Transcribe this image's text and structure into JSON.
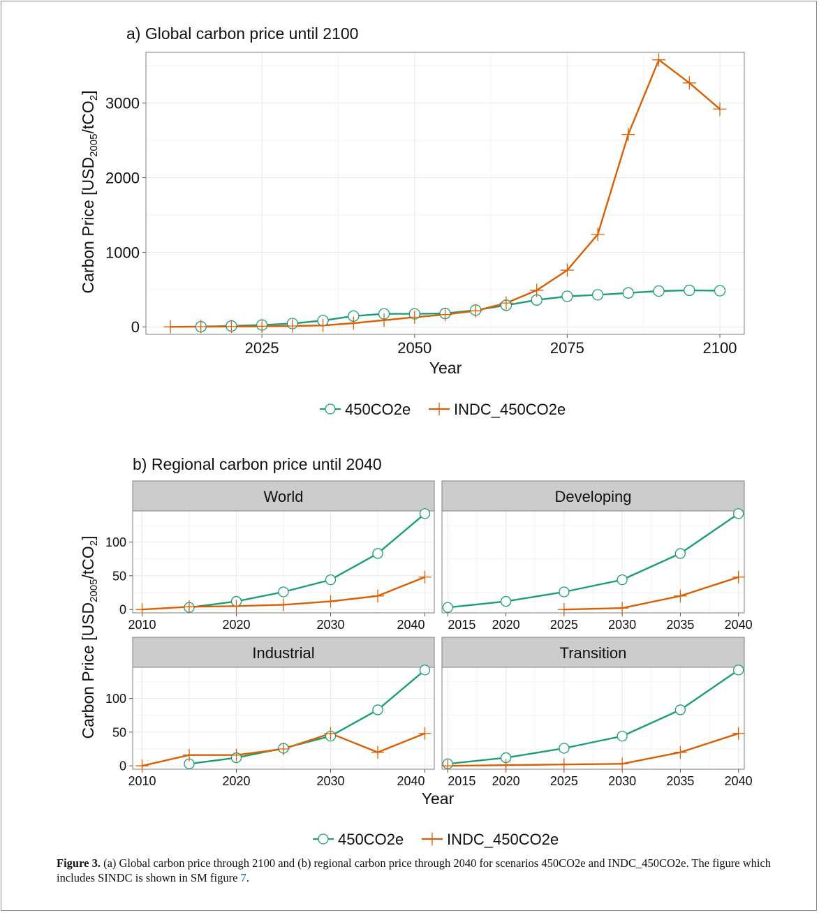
{
  "colors": {
    "series1": "#1b9e77",
    "series2": "#d95f02",
    "strip_bg": "#cccccc",
    "grid": "#ebebeb",
    "frame": "#7f7f7f"
  },
  "chart_data": [
    {
      "type": "line",
      "title": "a) Global carbon price until 2100",
      "xlabel": "Year",
      "ylabel": "Carbon Price [USD2005/tCO2]",
      "ylabel_parts": {
        "main": "Carbon Price [USD",
        "sub1": "2005",
        "mid": "/tCO",
        "sub2": "2",
        "end": "]"
      },
      "xlim": [
        2006,
        2104
      ],
      "ylim": [
        -100,
        3680
      ],
      "xticks": [
        2025,
        2050,
        2075,
        2100
      ],
      "yticks": [
        0,
        1000,
        2000,
        3000
      ],
      "grid": true,
      "legend_position": "bottom",
      "series": [
        {
          "name": "450CO2e",
          "marker": "circle",
          "x": [
            2015,
            2020,
            2025,
            2030,
            2035,
            2040,
            2045,
            2050,
            2055,
            2060,
            2065,
            2070,
            2075,
            2080,
            2085,
            2090,
            2095,
            2100
          ],
          "y": [
            3,
            12,
            25,
            45,
            85,
            145,
            175,
            175,
            180,
            225,
            290,
            360,
            410,
            430,
            455,
            480,
            490,
            485
          ]
        },
        {
          "name": "INDC_450CO2e",
          "marker": "plus",
          "x": [
            2010,
            2015,
            2020,
            2025,
            2030,
            2035,
            2040,
            2045,
            2050,
            2055,
            2060,
            2065,
            2070,
            2075,
            2080,
            2085,
            2090,
            2095,
            2100
          ],
          "y": [
            0,
            3,
            5,
            8,
            12,
            20,
            50,
            90,
            130,
            165,
            215,
            320,
            490,
            760,
            1240,
            2580,
            3580,
            3270,
            2920
          ]
        }
      ]
    },
    {
      "type": "line",
      "title": "b) Regional carbon price until 2040",
      "xlabel": "Year",
      "ylabel": "Carbon Price [USD2005/tCO2]",
      "ylim": [
        -5,
        146
      ],
      "yticks": [
        0,
        50,
        100
      ],
      "grid": true,
      "legend_position": "bottom",
      "facets": [
        {
          "name": "World",
          "xlim": [
            2009,
            2041
          ],
          "xticks": [
            2010,
            2020,
            2030,
            2040
          ],
          "series": [
            {
              "name": "450CO2e",
              "x": [
                2015,
                2020,
                2025,
                2030,
                2035,
                2040
              ],
              "y": [
                3,
                12,
                26,
                44,
                83,
                142
              ]
            },
            {
              "name": "INDC_450CO2e",
              "x": [
                2010,
                2015,
                2020,
                2025,
                2030,
                2035,
                2040
              ],
              "y": [
                0,
                4,
                5,
                7,
                12,
                20,
                48
              ]
            }
          ]
        },
        {
          "name": "Developing",
          "xlim": [
            2014.5,
            2040.5
          ],
          "xticks": [
            2015,
            2020,
            2025,
            2030,
            2035,
            2040
          ],
          "series": [
            {
              "name": "450CO2e",
              "x": [
                2015,
                2020,
                2025,
                2030,
                2035,
                2040
              ],
              "y": [
                3,
                12,
                26,
                44,
                83,
                142
              ]
            },
            {
              "name": "INDC_450CO2e",
              "x": [
                2025,
                2030,
                2035,
                2040
              ],
              "y": [
                0,
                2,
                20,
                48
              ]
            }
          ]
        },
        {
          "name": "Industrial",
          "xlim": [
            2009,
            2041
          ],
          "xticks": [
            2010,
            2020,
            2030,
            2040
          ],
          "series": [
            {
              "name": "450CO2e",
              "x": [
                2015,
                2020,
                2025,
                2030,
                2035,
                2040
              ],
              "y": [
                3,
                12,
                26,
                44,
                83,
                142
              ]
            },
            {
              "name": "INDC_450CO2e",
              "x": [
                2010,
                2015,
                2020,
                2025,
                2030,
                2035,
                2040
              ],
              "y": [
                0,
                16,
                16,
                25,
                48,
                20,
                48
              ]
            }
          ]
        },
        {
          "name": "Transition",
          "xlim": [
            2014.5,
            2040.5
          ],
          "xticks": [
            2015,
            2020,
            2025,
            2030,
            2035,
            2040
          ],
          "series": [
            {
              "name": "450CO2e",
              "x": [
                2015,
                2020,
                2025,
                2030,
                2035,
                2040
              ],
              "y": [
                3,
                12,
                26,
                44,
                83,
                142
              ]
            },
            {
              "name": "INDC_450CO2e",
              "x": [
                2015,
                2020,
                2025,
                2030,
                2035,
                2040
              ],
              "y": [
                0,
                1,
                2,
                3,
                20,
                48
              ]
            }
          ]
        }
      ]
    }
  ],
  "caption": {
    "label": "Figure 3.",
    "text": " (a) Global carbon price through 2100 and (b) regional carbon price through 2040 for scenarios 450CO2e and INDC_450CO2e. The figure which includes SINDC is shown in SM figure ",
    "ref": "7",
    "end": "."
  }
}
